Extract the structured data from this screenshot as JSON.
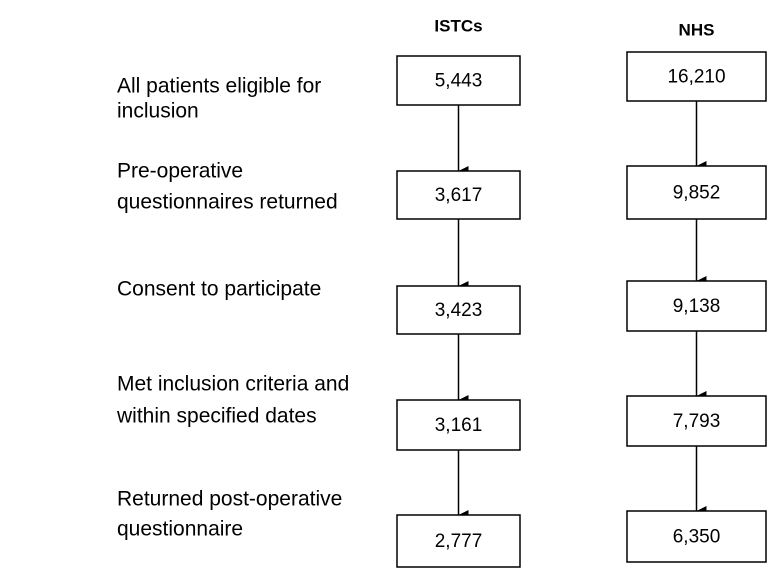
{
  "columns": [
    {
      "header": "ISTCs",
      "counts": [
        "5,443",
        "3,617",
        "3,423",
        "3,161",
        "2,777"
      ]
    },
    {
      "header": "NHS",
      "counts": [
        "16,210",
        "9,852",
        "9,138",
        "7,793",
        "6,350"
      ]
    }
  ],
  "stages": [
    {
      "lines": [
        "All patients eligible for",
        "inclusion"
      ]
    },
    {
      "lines": [
        "Pre-operative",
        "questionnaires returned"
      ]
    },
    {
      "lines": [
        "Consent to participate"
      ]
    },
    {
      "lines": [
        "Met inclusion criteria and",
        "within specified dates"
      ]
    },
    {
      "lines": [
        "Returned post-operative",
        "questionnaire"
      ]
    }
  ]
}
